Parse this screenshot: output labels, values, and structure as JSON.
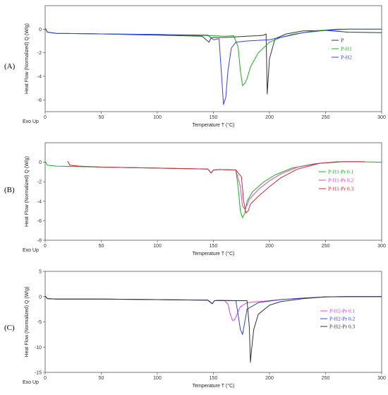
{
  "chart_data": [
    {
      "type": "line",
      "panel_label": "(A)",
      "xlabel": "Temperature T (°C)",
      "ylabel": "Heat Flow (Normalized) Q (W/g)",
      "exo_label": "Exo Up",
      "xlim": [
        0,
        300
      ],
      "ylim": [
        -7,
        2
      ],
      "xticks": [
        0,
        50,
        100,
        150,
        200,
        250,
        300
      ],
      "yticks": [
        0,
        -2,
        -4,
        -6
      ],
      "ytick_labels": [
        "0",
        "-2",
        "-4",
        "-6"
      ],
      "legend_position": "right",
      "series": [
        {
          "name": "P",
          "color": "#333333",
          "x": [
            0,
            2,
            10,
            50,
            100,
            140,
            146,
            148,
            150,
            160,
            180,
            190,
            195,
            197,
            198,
            200,
            205,
            215,
            230,
            250,
            270,
            300
          ],
          "y": [
            0.1,
            -0.25,
            -0.35,
            -0.4,
            -0.5,
            -0.6,
            -1.1,
            -0.75,
            -0.7,
            -0.7,
            -0.6,
            -0.55,
            -0.5,
            -0.4,
            -5.5,
            -2.5,
            -0.8,
            -0.4,
            -0.15,
            -0.1,
            -0.25,
            -0.3
          ]
        },
        {
          "name": "P-H1",
          "color": "#22aa22",
          "x": [
            0,
            2,
            10,
            50,
            100,
            150,
            160,
            168,
            172,
            174,
            176,
            178,
            180,
            183,
            190,
            200,
            210,
            220,
            240,
            260,
            280,
            300
          ],
          "y": [
            0.1,
            -0.25,
            -0.35,
            -0.4,
            -0.45,
            -0.55,
            -0.6,
            -0.55,
            -1.5,
            -3.5,
            -4.8,
            -4.6,
            -4.2,
            -3.2,
            -2.0,
            -1.1,
            -0.7,
            -0.45,
            -0.15,
            0.0,
            0.0,
            0.0
          ]
        },
        {
          "name": "P-H2",
          "color": "#3344dd",
          "x": [
            0,
            2,
            10,
            50,
            100,
            145,
            150,
            155,
            157,
            159,
            161,
            163,
            166,
            170,
            180,
            200,
            215,
            230,
            250,
            270,
            300
          ],
          "y": [
            0.1,
            -0.25,
            -0.35,
            -0.4,
            -0.45,
            -0.5,
            -0.9,
            -0.8,
            -3.5,
            -6.4,
            -5.8,
            -3.5,
            -1.6,
            -1.1,
            -1.0,
            -0.9,
            -0.6,
            -0.3,
            -0.1,
            0.0,
            0.0
          ]
        }
      ]
    },
    {
      "type": "line",
      "panel_label": "(B)",
      "xlabel": "Temperature T (°C)",
      "ylabel": "Heat Flow (Normalized) Q (W/g)",
      "exo_label": "Exo Up",
      "xlim": [
        0,
        300
      ],
      "ylim": [
        -8,
        2
      ],
      "xticks": [
        0,
        50,
        100,
        150,
        200,
        250,
        300
      ],
      "yticks": [
        0,
        -2,
        -4,
        -6,
        -8
      ],
      "ytick_labels": [
        "0",
        "-2",
        "-4",
        "-6",
        "-8"
      ],
      "legend_position": "right",
      "series": [
        {
          "name": "P-H1-Pr 0.1",
          "color": "#22aa22",
          "x": [
            0,
            2,
            10,
            50,
            100,
            145,
            148,
            150,
            155,
            170,
            172,
            174,
            176,
            178,
            180,
            185,
            195,
            205,
            220,
            240,
            260,
            280,
            300
          ],
          "y": [
            0.1,
            -0.3,
            -0.4,
            -0.5,
            -0.6,
            -0.7,
            -1.1,
            -0.8,
            -0.75,
            -0.8,
            -2.5,
            -5.0,
            -5.7,
            -5.2,
            -4.0,
            -3.0,
            -2.0,
            -1.3,
            -0.6,
            -0.15,
            0.05,
            0.05,
            0.0
          ]
        },
        {
          "name": "P-H1-Pr 0.2",
          "color": "#dd44cc",
          "x": [
            20,
            22,
            30,
            50,
            100,
            145,
            148,
            150,
            155,
            170,
            174,
            176,
            178,
            180,
            182,
            190,
            200,
            210,
            225,
            245,
            265,
            285
          ],
          "y": [
            0.1,
            -0.3,
            -0.4,
            -0.5,
            -0.6,
            -0.7,
            -1.1,
            -0.8,
            -0.75,
            -0.8,
            -2.5,
            -4.5,
            -4.8,
            -4.4,
            -3.8,
            -2.8,
            -1.9,
            -1.2,
            -0.5,
            -0.1,
            0.05,
            0.05
          ]
        },
        {
          "name": "P-H1-Pr 0.3",
          "color": "#bb3333",
          "x": [
            20,
            22,
            30,
            50,
            100,
            145,
            148,
            150,
            155,
            170,
            175,
            177,
            179,
            181,
            183,
            190,
            200,
            210,
            225,
            245,
            265,
            285
          ],
          "y": [
            0.1,
            -0.3,
            -0.4,
            -0.5,
            -0.6,
            -0.7,
            -1.1,
            -0.8,
            -0.75,
            -0.8,
            -1.5,
            -4.0,
            -5.2,
            -5.0,
            -4.3,
            -3.5,
            -2.5,
            -1.6,
            -0.7,
            -0.1,
            0.05,
            0.05
          ]
        }
      ]
    },
    {
      "type": "line",
      "panel_label": "(C)",
      "xlabel": "Temperature T (°C)",
      "ylabel": "Heat Flow (Normalized) Q (W/g)",
      "exo_label": "Exo Up",
      "xlim": [
        0,
        300
      ],
      "ylim": [
        -15,
        5
      ],
      "xticks": [
        0,
        50,
        100,
        150,
        200,
        250,
        300
      ],
      "yticks": [
        5,
        0,
        -5,
        -10,
        -15
      ],
      "ytick_labels": [
        "5",
        "0",
        "-5",
        "-10",
        "-15"
      ],
      "legend_position": "right",
      "series": [
        {
          "name": "P-H2-Pr 0.1",
          "color": "#dd44dd",
          "x": [
            0,
            2,
            10,
            50,
            100,
            145,
            149,
            151,
            155,
            160,
            163,
            165,
            167,
            169,
            171,
            174,
            180,
            190,
            210,
            230,
            250,
            270,
            300
          ],
          "y": [
            0.1,
            -0.4,
            -0.5,
            -0.5,
            -0.6,
            -0.7,
            -1.4,
            -0.8,
            -0.75,
            -0.8,
            -1.5,
            -3.5,
            -4.7,
            -4.6,
            -3.5,
            -2.0,
            -1.2,
            -1.0,
            -0.6,
            -0.3,
            -0.05,
            0.0,
            0.0
          ]
        },
        {
          "name": "P-H2-Pr 0.2",
          "color": "#3344cc",
          "x": [
            0,
            2,
            10,
            50,
            100,
            145,
            149,
            151,
            155,
            170,
            172,
            174,
            176,
            178,
            180,
            190,
            210,
            230,
            250,
            270,
            300
          ],
          "y": [
            0.1,
            -0.4,
            -0.5,
            -0.5,
            -0.6,
            -0.7,
            -1.4,
            -0.8,
            -0.75,
            -0.8,
            -3.5,
            -6.5,
            -7.5,
            -5.0,
            -2.5,
            -1.2,
            -0.6,
            -0.3,
            -0.05,
            0.0,
            0.0
          ]
        },
        {
          "name": "P-H2-Pr 0.3",
          "color": "#333333",
          "x": [
            0,
            2,
            10,
            50,
            100,
            145,
            149,
            151,
            155,
            170,
            180,
            182,
            183,
            184,
            186,
            190,
            200,
            210,
            230,
            250,
            270,
            300
          ],
          "y": [
            0.1,
            -0.4,
            -0.5,
            -0.5,
            -0.6,
            -0.7,
            -1.4,
            -0.8,
            -0.75,
            -0.8,
            -0.8,
            -6.0,
            -13.0,
            -10.5,
            -6.5,
            -3.5,
            -1.7,
            -1.0,
            -0.4,
            -0.05,
            0.0,
            0.0
          ]
        }
      ]
    }
  ]
}
